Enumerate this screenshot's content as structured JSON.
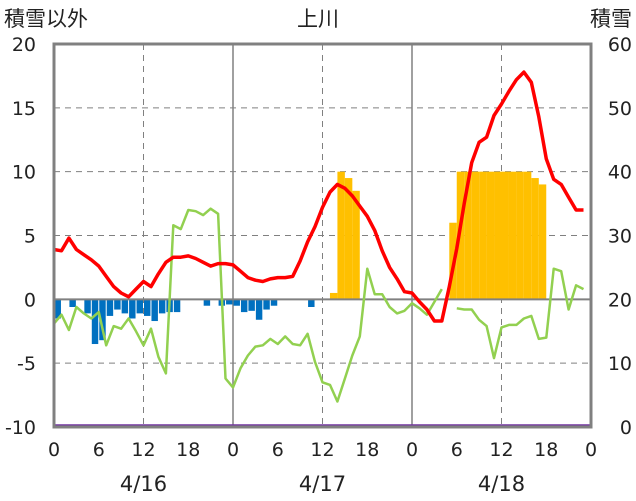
{
  "chart_data": {
    "type": "bar+line",
    "title": "上川",
    "left_axis_label": "積雪以外",
    "right_axis_label": "積雪",
    "left_ylim": [
      -10,
      20
    ],
    "left_ticks": [
      "20",
      "15",
      "10",
      "5",
      "0",
      "-5",
      "-10"
    ],
    "right_ylim": [
      0,
      60
    ],
    "right_ticks": [
      "60",
      "50",
      "40",
      "30",
      "20",
      "10",
      "0"
    ],
    "x_range": [
      0,
      72
    ],
    "x_tick_hours": [
      0,
      6,
      12,
      18,
      24,
      30,
      36,
      42,
      48,
      54,
      60,
      66,
      72
    ],
    "x_tick_labels": [
      "0",
      "6",
      "12",
      "18",
      "0",
      "6",
      "12",
      "18",
      "0",
      "6",
      "12",
      "18",
      "0"
    ],
    "date_labels": [
      {
        "hour": 12,
        "label": "4/16"
      },
      {
        "hour": 36,
        "label": "4/17"
      },
      {
        "hour": 60,
        "label": "4/18"
      }
    ],
    "day_boundaries": [
      24,
      48
    ],
    "dashed_gridlines": [
      12,
      36,
      60
    ],
    "colors": {
      "temperature": "#ff0000",
      "dew_point": "#92d050",
      "precipitation": "#0070c0",
      "snow_depth": "#ffc000",
      "baseline": "#7030a0",
      "frame": "#808080"
    },
    "temperature": {
      "axis": "left",
      "x": [
        0,
        1,
        2,
        3,
        4,
        5,
        6,
        7,
        8,
        9,
        10,
        11,
        12,
        13,
        14,
        15,
        16,
        17,
        18,
        19,
        20,
        21,
        22,
        23,
        24,
        25,
        26,
        27,
        28,
        29,
        30,
        31,
        32,
        33,
        34,
        35,
        36,
        37,
        38,
        39,
        40,
        41,
        42,
        43,
        44,
        45,
        46,
        47,
        48,
        49,
        50,
        51,
        52,
        53,
        54,
        55,
        56,
        57,
        58,
        59,
        60,
        61,
        62,
        63,
        64,
        65,
        66,
        67,
        68,
        69,
        70,
        71
      ],
      "y": [
        3.9,
        3.8,
        4.8,
        3.9,
        3.5,
        3.1,
        2.6,
        1.8,
        1.0,
        0.5,
        0.2,
        0.8,
        1.4,
        1.0,
        2.0,
        2.9,
        3.3,
        3.3,
        3.4,
        3.2,
        2.9,
        2.6,
        2.8,
        2.8,
        2.7,
        2.2,
        1.7,
        1.5,
        1.4,
        1.6,
        1.7,
        1.7,
        1.8,
        3.0,
        4.5,
        5.7,
        7.2,
        8.4,
        9.0,
        8.7,
        8.1,
        7.3,
        6.5,
        5.4,
        3.8,
        2.5,
        1.6,
        0.6,
        0.5,
        -0.2,
        -0.8,
        -1.7,
        -1.7,
        1.0,
        4.0,
        7.5,
        10.7,
        12.3,
        12.7,
        14.4,
        15.3,
        16.3,
        17.2,
        17.8,
        17.0,
        14.3,
        11.0,
        9.4,
        9.0,
        8.0,
        7.0,
        7.0
      ]
    },
    "dew_point": {
      "axis": "left",
      "x": [
        0,
        1,
        2,
        3,
        4,
        5,
        6,
        7,
        8,
        9,
        10,
        11,
        12,
        13,
        14,
        15,
        16,
        17,
        18,
        19,
        20,
        21,
        22,
        23,
        24,
        25,
        26,
        27,
        28,
        29,
        30,
        31,
        32,
        33,
        34,
        35,
        36,
        37,
        38,
        39,
        40,
        41,
        42,
        43,
        44,
        45,
        46,
        47,
        48,
        49,
        50,
        51,
        52,
        53,
        54,
        55,
        56,
        57,
        58,
        59,
        60,
        61,
        62,
        63,
        64,
        65,
        66,
        67,
        68,
        69,
        70,
        71
      ],
      "y": [
        -1.9,
        -1.2,
        -2.4,
        -0.6,
        -1.1,
        -1.5,
        -1.0,
        -3.6,
        -2.1,
        -2.3,
        -1.5,
        -2.5,
        -3.6,
        -2.3,
        -4.5,
        -5.8,
        5.8,
        5.5,
        7.0,
        6.9,
        6.6,
        7.1,
        6.7,
        -6.2,
        -6.9,
        -5.4,
        -4.4,
        -3.7,
        -3.6,
        -3.1,
        -3.5,
        -2.9,
        -3.5,
        -3.6,
        -2.7,
        -4.9,
        -6.5,
        -6.7,
        -8.0,
        -6.2,
        -4.4,
        -2.9,
        2.4,
        0.4,
        0.4,
        -0.6,
        -1.1,
        -0.9,
        -0.3,
        -0.7,
        -1.2,
        -0.2,
        0.8,
        null,
        -0.7,
        -0.8,
        -0.8,
        -1.6,
        -2.1,
        -4.6,
        -2.2,
        -2.0,
        -2.0,
        -1.5,
        -1.3,
        -3.1,
        -3.0,
        2.4,
        2.2,
        -0.8,
        1.1,
        0.8
      ]
    },
    "precipitation": {
      "axis": "left",
      "x": [
        0,
        2,
        4,
        5,
        6,
        7,
        8,
        9,
        10,
        11,
        12,
        13,
        14,
        15,
        16,
        17,
        18,
        19,
        20,
        21,
        22,
        23,
        24,
        25,
        26,
        27,
        28,
        29,
        30,
        31,
        32,
        33,
        34,
        35,
        36,
        37,
        38,
        39,
        40,
        41,
        42,
        43,
        44,
        45,
        46,
        47,
        48,
        49,
        50,
        51,
        52,
        53,
        54,
        55,
        56,
        57,
        58,
        59,
        60,
        61,
        62,
        63,
        64,
        65,
        66,
        67,
        68,
        69,
        70,
        71
      ],
      "values": [
        -1.5,
        -0.6,
        -1.1,
        -3.5,
        -3.2,
        -1.3,
        -0.8,
        -1.1,
        -1.5,
        -1.1,
        -1.3,
        -1.7,
        -1.1,
        -1.0,
        -1.0,
        0,
        0,
        0,
        -0.5,
        0,
        -0.5,
        -0.4,
        -0.5,
        -1.0,
        -0.9,
        -1.6,
        -0.8,
        -0.5,
        0,
        0,
        0,
        0,
        -0.6,
        0,
        0,
        0,
        0,
        0,
        0,
        0,
        0,
        0,
        0,
        0,
        0,
        0,
        0,
        0,
        0,
        0,
        0,
        0,
        0,
        0,
        0,
        0,
        0,
        0,
        0,
        0,
        0,
        0,
        0,
        0,
        0,
        0,
        0,
        0,
        0,
        0
      ]
    },
    "snow_depth": {
      "axis": "right",
      "x": [
        37,
        38,
        39,
        40,
        53,
        54,
        55,
        56,
        57,
        58,
        59,
        60,
        61,
        62,
        63,
        64,
        65
      ],
      "values": [
        21,
        40,
        39,
        37,
        32,
        40,
        40,
        40,
        40,
        40,
        40,
        40,
        40,
        40,
        40,
        39,
        38
      ]
    }
  }
}
